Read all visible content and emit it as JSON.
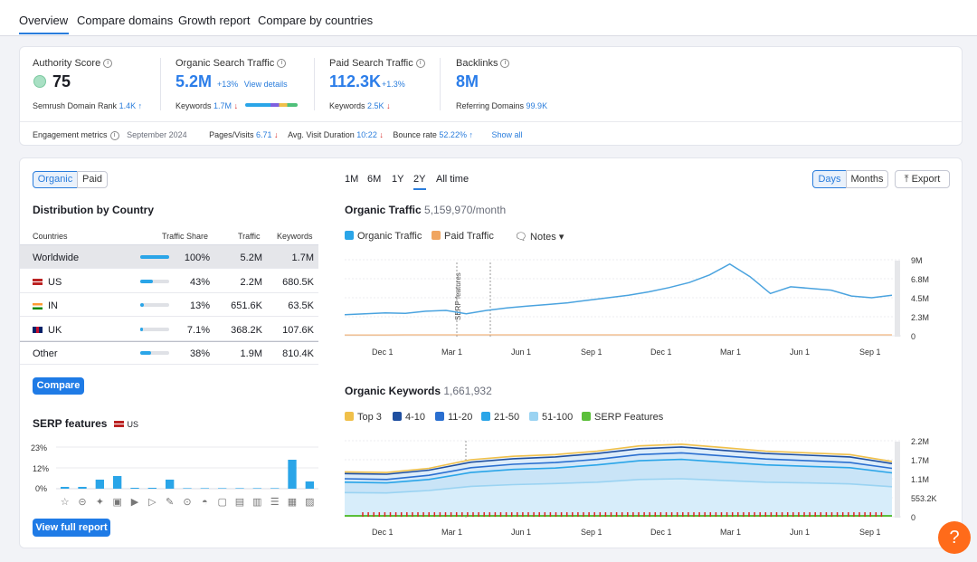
{
  "tabs": [
    "Overview",
    "Compare domains",
    "Growth report",
    "Compare by countries"
  ],
  "metrics": {
    "authority": {
      "label": "Authority Score",
      "value": "75",
      "rank_label": "Semrush Domain Rank",
      "rank_value": "1.4K",
      "rank_trend": "↑"
    },
    "organic": {
      "label": "Organic Search Traffic",
      "value": "5.2M",
      "change": "+13%",
      "link": "View details",
      "kw_label": "Keywords",
      "kw_value": "1.7M",
      "kw_trend": "↓"
    },
    "paid": {
      "label": "Paid Search Traffic",
      "value": "112.3K",
      "change": "+1.3%",
      "kw_label": "Keywords",
      "kw_value": "2.5K",
      "kw_trend": "↓"
    },
    "backlinks": {
      "label": "Backlinks",
      "value": "8M",
      "ref_label": "Referring Domains",
      "ref_value": "99.9K"
    }
  },
  "engagement": {
    "label": "Engagement metrics",
    "date": "September 2024",
    "pages_label": "Pages/Visits",
    "pages_value": "6.71",
    "pages_trend": "↓",
    "duration_label": "Avg. Visit Duration",
    "duration_value": "10:22",
    "duration_trend": "↓",
    "bounce_label": "Bounce rate",
    "bounce_value": "52.22%",
    "bounce_trend": "↑",
    "show_all": "Show all"
  },
  "distribution": {
    "toggle": [
      "Organic",
      "Paid"
    ],
    "title": "Distribution by Country",
    "headers": [
      "Countries",
      "Traffic Share",
      "Traffic",
      "Keywords"
    ],
    "rows": [
      {
        "country": "Worldwide",
        "share": "100%",
        "share_frac": 1.0,
        "traffic": "5.2M",
        "keywords": "1.7M"
      },
      {
        "country": "US",
        "share": "43%",
        "share_frac": 0.43,
        "traffic": "2.2M",
        "keywords": "680.5K"
      },
      {
        "country": "IN",
        "share": "13%",
        "share_frac": 0.13,
        "traffic": "651.6K",
        "keywords": "63.5K"
      },
      {
        "country": "UK",
        "share": "7.1%",
        "share_frac": 0.071,
        "traffic": "368.2K",
        "keywords": "107.6K"
      },
      {
        "country": "Other",
        "share": "38%",
        "share_frac": 0.38,
        "traffic": "1.9M",
        "keywords": "810.4K"
      }
    ],
    "compare_button": "Compare"
  },
  "serp": {
    "title": "SERP features",
    "country": "US",
    "ylabels": [
      "23%",
      "12%",
      "0%"
    ],
    "button": "View full report",
    "chart_data": {
      "type": "bar",
      "values": [
        1,
        1,
        5,
        7,
        0.5,
        0.5,
        5,
        0.3,
        0.3,
        0.3,
        0.3,
        0.3,
        0.3,
        16,
        4
      ]
    }
  },
  "periods": [
    "1M",
    "6M",
    "1Y",
    "2Y",
    "All time"
  ],
  "view_toggle": [
    "Days",
    "Months"
  ],
  "export": "Export",
  "organic_chart": {
    "title": "Organic Traffic",
    "subtitle": "5,159,970/month",
    "legend": [
      "Organic Traffic",
      "Paid Traffic"
    ],
    "notes": "Notes",
    "annotation": "SERP features",
    "yticks": [
      "9M",
      "6.8M",
      "4.5M",
      "2.3M",
      "0"
    ],
    "xticks": [
      "Dec 1",
      "Mar 1",
      "Jun 1",
      "Sep 1",
      "Dec 1",
      "Mar 1",
      "Jun 1",
      "Sep 1"
    ],
    "chart_data": {
      "type": "line",
      "ylim": [
        0,
        9000000
      ],
      "series": [
        {
          "name": "Organic Traffic",
          "values": [
            2500000,
            2600000,
            2700000,
            2650000,
            2900000,
            3000000,
            2600000,
            3000000,
            3300000,
            3500000,
            3700000,
            3900000,
            4200000,
            4500000,
            4800000,
            5200000,
            5700000,
            6300000,
            7200000,
            8500000,
            7000000,
            5000000,
            5800000,
            5600000,
            5400000,
            4700000,
            4500000,
            4800000
          ]
        },
        {
          "name": "Paid Traffic",
          "values": [
            100000,
            100000,
            100000,
            110000,
            110000,
            110000,
            110000,
            110000,
            110000,
            110000,
            112000,
            112000,
            112000,
            112000,
            112000,
            112000,
            112000,
            112000,
            112000,
            112000,
            112000,
            112000,
            112000,
            112000,
            112000,
            112000,
            112000,
            112300
          ]
        }
      ]
    }
  },
  "keywords_chart": {
    "title": "Organic Keywords",
    "subtitle": "1,661,932",
    "legend": [
      "Top 3",
      "4-10",
      "11-20",
      "21-50",
      "51-100",
      "SERP Features"
    ],
    "yticks": [
      "2.2M",
      "1.7M",
      "1.1M",
      "553.2K",
      "0"
    ],
    "xticks": [
      "Dec 1",
      "Mar 1",
      "Jun 1",
      "Sep 1",
      "Dec 1",
      "Mar 1",
      "Jun 1",
      "Sep 1"
    ],
    "chart_data": {
      "type": "area",
      "ylim": [
        0,
        2200000
      ],
      "series": [
        {
          "name": "Top 3",
          "values": [
            1300000,
            1280000,
            1400000,
            1650000,
            1750000,
            1800000,
            1900000,
            2050000,
            2100000,
            2000000,
            1900000,
            1850000,
            1800000,
            1600000
          ]
        },
        {
          "name": "4-10",
          "values": [
            1250000,
            1230000,
            1350000,
            1580000,
            1680000,
            1730000,
            1830000,
            1970000,
            2020000,
            1920000,
            1830000,
            1780000,
            1730000,
            1540000
          ]
        },
        {
          "name": "11-20",
          "values": [
            1100000,
            1080000,
            1200000,
            1420000,
            1520000,
            1570000,
            1660000,
            1800000,
            1850000,
            1760000,
            1670000,
            1620000,
            1570000,
            1400000
          ]
        },
        {
          "name": "21-50",
          "values": [
            1000000,
            980000,
            1080000,
            1280000,
            1370000,
            1410000,
            1500000,
            1620000,
            1660000,
            1580000,
            1500000,
            1460000,
            1420000,
            1270000
          ]
        },
        {
          "name": "51-100",
          "values": [
            700000,
            690000,
            760000,
            880000,
            930000,
            960000,
            1000000,
            1080000,
            1100000,
            1050000,
            1000000,
            980000,
            950000,
            870000
          ]
        }
      ]
    }
  },
  "colors": {
    "accent": "#2a7ddc",
    "organic": "#4aa3df",
    "paid": "#f0a560",
    "help": "#ff6b1a"
  },
  "help": "?"
}
